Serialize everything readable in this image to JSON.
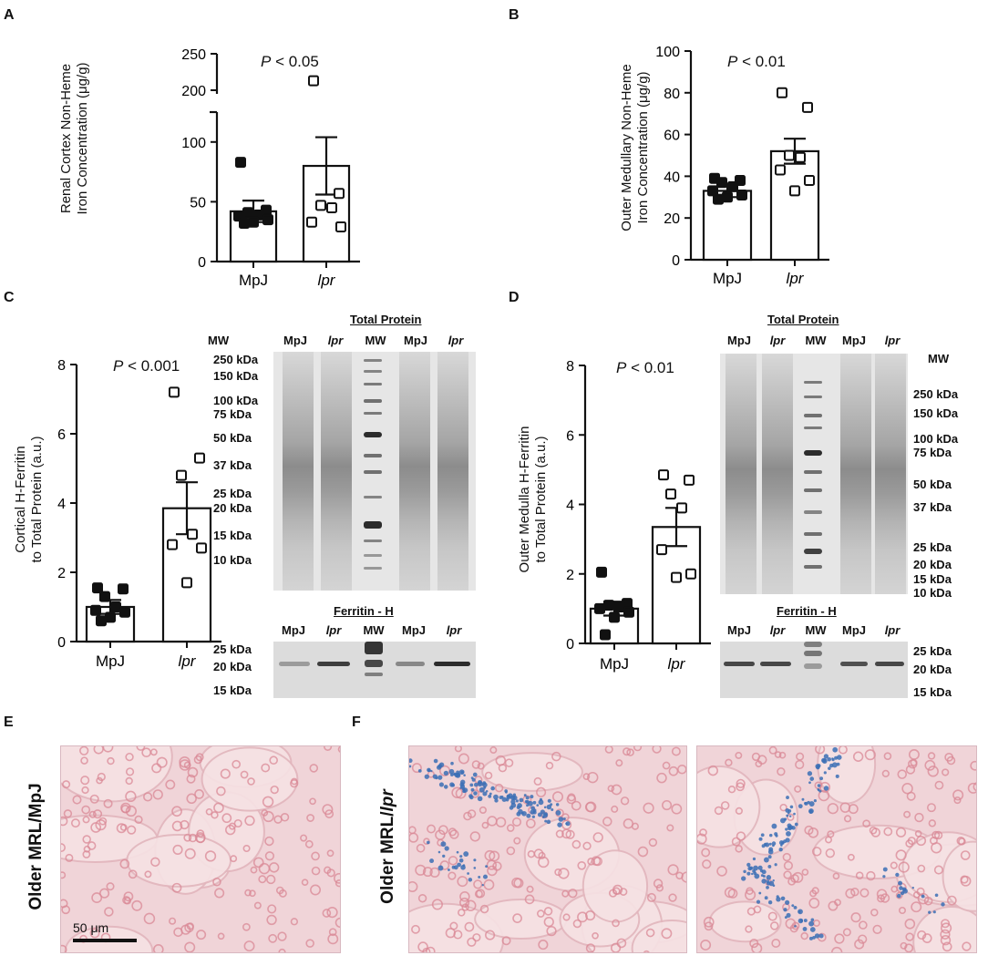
{
  "panels": {
    "A": {
      "letter": "A",
      "pvalue_p": "P",
      "pvalue_rest": " < 0.05",
      "ylabel_line1": "Renal Cortex Non-Heme",
      "ylabel_line2": "Iron Concentration (μg/g)"
    },
    "B": {
      "letter": "B",
      "pvalue_p": "P",
      "pvalue_rest": " < 0.01",
      "ylabel_line1": "Outer Medullary Non-Heme",
      "ylabel_line2": "Iron Concentration (μg/g)"
    },
    "C": {
      "letter": "C",
      "pvalue_p": "P",
      "pvalue_rest": " < 0.001",
      "ylabel_line1": "Cortical H-Ferritin",
      "ylabel_line2": "to Total Protein (a.u.)"
    },
    "D": {
      "letter": "D",
      "pvalue_p": "P",
      "pvalue_rest": " < 0.01",
      "ylabel_line1": "Outer Medulla H-Ferritin",
      "ylabel_line2": "to Total Protein (a.u.)"
    },
    "E": {
      "letter": "E",
      "side_label": "Older MRL/MpJ",
      "scalebar_label": "50 μm"
    },
    "F": {
      "letter": "F",
      "side_label_prefix": "Older MRL/",
      "side_label_italic": "lpr"
    }
  },
  "chart_data": [
    {
      "id": "A",
      "type": "bar",
      "categories": [
        "MpJ",
        "lpr"
      ],
      "categories_italic": [
        false,
        true
      ],
      "means": [
        42,
        80
      ],
      "sem": [
        9,
        24
      ],
      "points": [
        [
          83,
          43,
          41,
          39,
          38,
          35,
          33,
          32
        ],
        [
          213,
          57,
          47,
          45,
          33,
          29
        ]
      ],
      "filled": [
        true,
        false
      ],
      "yticks": [
        0,
        50,
        100,
        200,
        250
      ],
      "axis_break": [
        125,
        195
      ]
    },
    {
      "id": "B",
      "type": "bar",
      "categories": [
        "MpJ",
        "lpr"
      ],
      "categories_italic": [
        false,
        true
      ],
      "means": [
        33,
        52
      ],
      "sem": [
        3,
        6
      ],
      "points": [
        [
          39,
          38,
          37,
          35,
          33,
          31,
          30,
          29
        ],
        [
          80,
          73,
          50,
          49,
          43,
          38,
          33
        ]
      ],
      "filled": [
        true,
        false
      ],
      "yticks": [
        0,
        20,
        40,
        60,
        80,
        100
      ],
      "ylim": [
        0,
        100
      ]
    },
    {
      "id": "C",
      "type": "bar",
      "categories": [
        "MpJ",
        "lpr"
      ],
      "categories_italic": [
        false,
        true
      ],
      "means": [
        1.0,
        3.85
      ],
      "sem": [
        0.2,
        0.75
      ],
      "points": [
        [
          1.55,
          1.52,
          1.3,
          1.0,
          0.9,
          0.85,
          0.7,
          0.6
        ],
        [
          7.2,
          5.3,
          4.8,
          3.1,
          2.8,
          2.7,
          1.7
        ]
      ],
      "filled": [
        true,
        false
      ],
      "yticks": [
        0,
        2,
        4,
        6,
        8
      ],
      "ylim": [
        0,
        8
      ]
    },
    {
      "id": "D",
      "type": "bar",
      "categories": [
        "MpJ",
        "lpr"
      ],
      "categories_italic": [
        false,
        true
      ],
      "means": [
        1.0,
        3.35
      ],
      "sem": [
        0.2,
        0.55
      ],
      "points": [
        [
          2.05,
          1.15,
          1.1,
          1.05,
          1.0,
          0.9,
          0.75,
          0.25
        ],
        [
          4.85,
          4.7,
          4.3,
          3.9,
          2.7,
          2.0,
          1.9
        ]
      ],
      "filled": [
        true,
        false
      ],
      "yticks": [
        0,
        2,
        4,
        6,
        8
      ],
      "ylim": [
        0,
        8
      ]
    }
  ],
  "blots": {
    "C_total": {
      "title": "Total Protein",
      "mw_header": "MW",
      "lanes": [
        "MpJ",
        "lpr",
        "MW",
        "MpJ",
        "lpr"
      ],
      "mw_labels": [
        "250 kDa",
        "150 kDa",
        "100 kDa",
        "75 kDa",
        "50 kDa",
        "37 kDa",
        "25 kDa",
        "20 kDa",
        "15 kDa",
        "10 kDa"
      ]
    },
    "C_ferritin": {
      "title": "Ferritin - H",
      "lanes": [
        "MpJ",
        "lpr",
        "MW",
        "MpJ",
        "lpr"
      ],
      "mw_labels": [
        "25 kDa",
        "20 kDa",
        "15 kDa"
      ]
    },
    "D_total": {
      "title": "Total Protein",
      "mw_header": "MW",
      "lanes": [
        "MpJ",
        "lpr",
        "MW",
        "MpJ",
        "lpr"
      ],
      "mw_labels": [
        "250 kDa",
        "150 kDa",
        "100 kDa",
        "75 kDa",
        "50 kDa",
        "37 kDa",
        "25 kDa",
        "20 kDa",
        "15 kDa",
        "10 kDa"
      ]
    },
    "D_ferritin": {
      "title": "Ferritin - H",
      "lanes": [
        "MpJ",
        "lpr",
        "MW",
        "MpJ",
        "lpr"
      ],
      "mw_labels": [
        "25 kDa",
        "20 kDa",
        "15 kDa"
      ]
    }
  },
  "colors": {
    "histo_bg": "#f0d4d8",
    "nuclei": "#d98896",
    "iron_stain": "#3b6fb5",
    "gel_bg": "#e6e6e6"
  }
}
